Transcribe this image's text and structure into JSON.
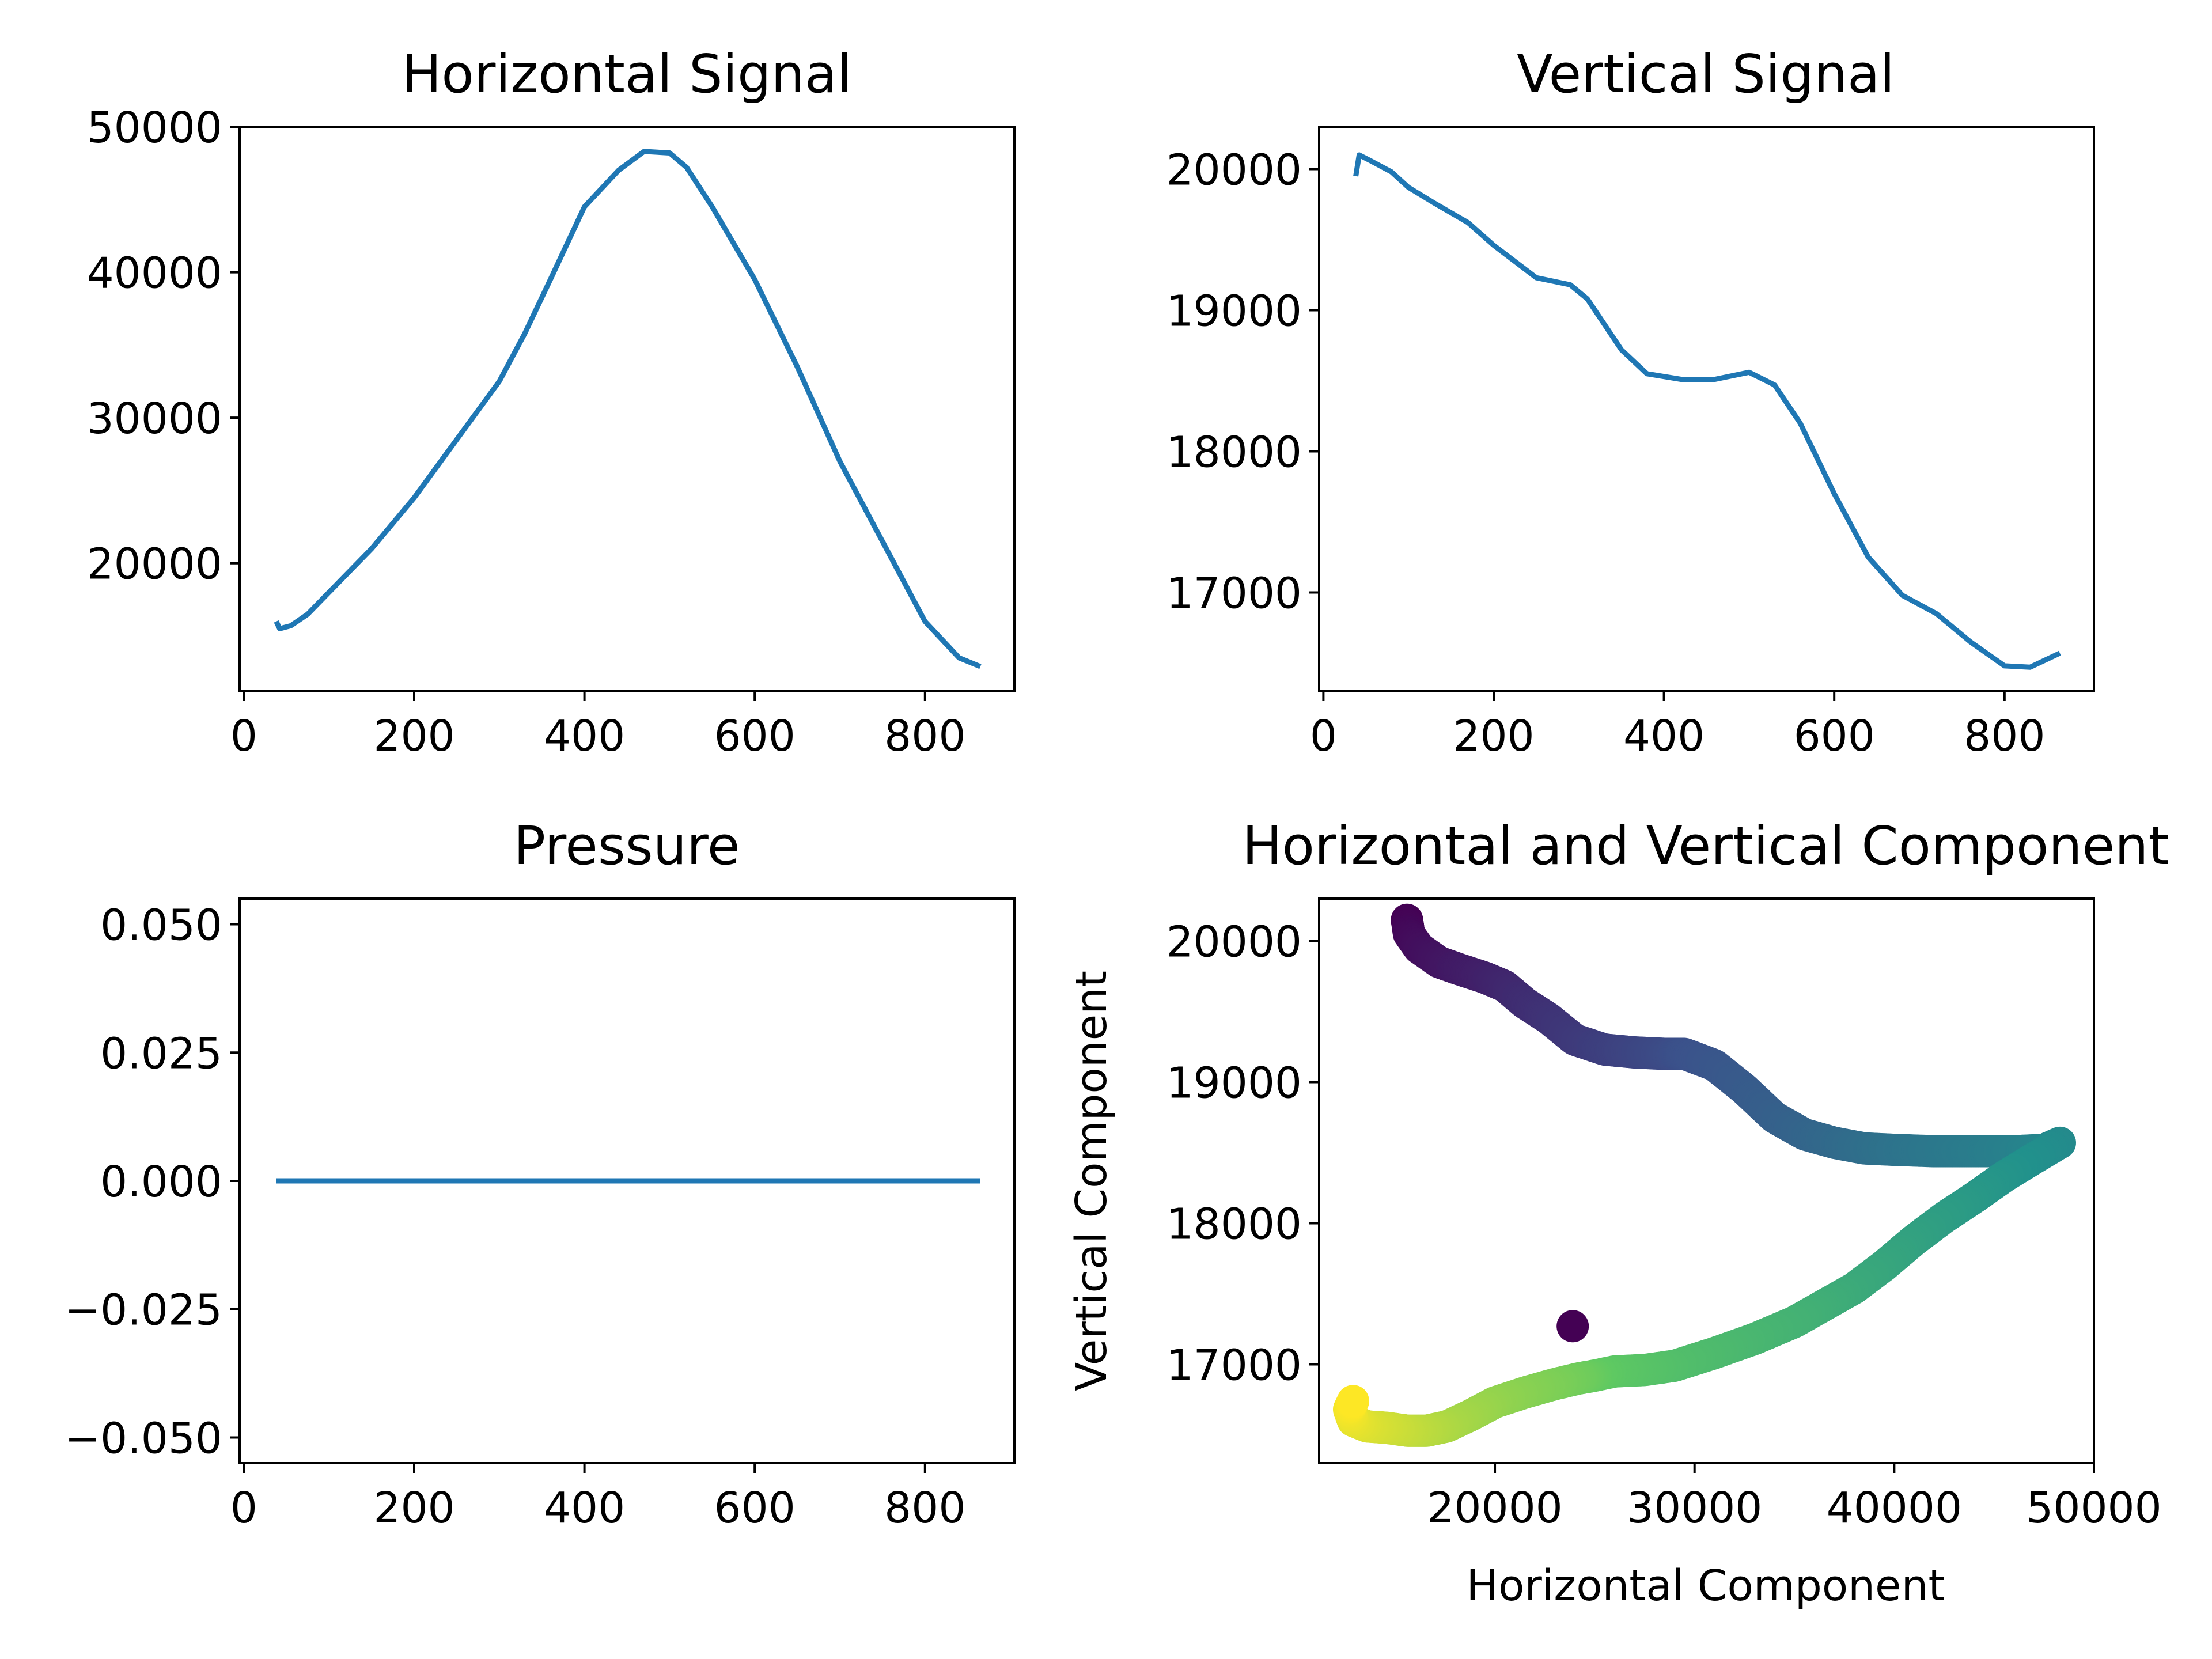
{
  "colors": {
    "line": "#1f77b4",
    "axes": "#000000",
    "background": "#ffffff",
    "colormap": [
      "#440154",
      "#3b528b",
      "#21918c",
      "#5ec962",
      "#fde725"
    ]
  },
  "chart_data": [
    {
      "id": "horizontal",
      "type": "line",
      "title": "Horizontal Signal",
      "xlabel": "",
      "ylabel": "",
      "xlim": [
        -5,
        905
      ],
      "ylim": [
        11200,
        50000
      ],
      "xticks": [
        0,
        200,
        400,
        600,
        800
      ],
      "xtick_labels": [
        "0",
        "200",
        "400",
        "600",
        "800"
      ],
      "yticks": [
        20000,
        30000,
        40000,
        50000
      ],
      "ytick_labels": [
        "20000",
        "30000",
        "40000",
        "50000"
      ],
      "grid": false,
      "series": [
        {
          "x": [
            38,
            42,
            55,
            75,
            100,
            150,
            200,
            250,
            300,
            330,
            360,
            400,
            440,
            470,
            500,
            520,
            550,
            600,
            650,
            700,
            750,
            800,
            840,
            865
          ],
          "y": [
            16000,
            15500,
            15700,
            16500,
            18000,
            21000,
            24500,
            28500,
            32500,
            35800,
            39500,
            44500,
            47000,
            48300,
            48200,
            47200,
            44500,
            39500,
            33500,
            27000,
            21500,
            16000,
            13500,
            12900
          ]
        }
      ]
    },
    {
      "id": "vertical",
      "type": "line",
      "title": "Vertical Signal",
      "xlabel": "",
      "ylabel": "",
      "xlim": [
        -5,
        905
      ],
      "ylim": [
        16300,
        20300
      ],
      "xticks": [
        0,
        200,
        400,
        600,
        800
      ],
      "xtick_labels": [
        "0",
        "200",
        "400",
        "600",
        "800"
      ],
      "yticks": [
        17000,
        18000,
        19000,
        20000
      ],
      "ytick_labels": [
        "17000",
        "18000",
        "19000",
        "20000"
      ],
      "grid": false,
      "series": [
        {
          "x": [
            38,
            42,
            55,
            80,
            100,
            130,
            170,
            200,
            250,
            290,
            310,
            350,
            380,
            420,
            460,
            500,
            530,
            560,
            600,
            640,
            680,
            720,
            760,
            800,
            830,
            865
          ],
          "y": [
            19950,
            20100,
            20060,
            19980,
            19870,
            19760,
            19620,
            19460,
            19230,
            19180,
            19080,
            18720,
            18550,
            18510,
            18510,
            18560,
            18470,
            18200,
            17700,
            17250,
            16980,
            16850,
            16650,
            16480,
            16470,
            16570
          ]
        }
      ]
    },
    {
      "id": "pressure",
      "type": "line",
      "title": "Pressure",
      "xlabel": "",
      "ylabel": "",
      "xlim": [
        -5,
        905
      ],
      "ylim": [
        -0.055,
        0.055
      ],
      "xticks": [
        0,
        200,
        400,
        600,
        800
      ],
      "xtick_labels": [
        "0",
        "200",
        "400",
        "600",
        "800"
      ],
      "yticks": [
        -0.05,
        -0.025,
        0,
        0.025,
        0.05
      ],
      "ytick_labels": [
        "−0.050",
        "−0.025",
        "0.000",
        "0.025",
        "0.050"
      ],
      "grid": false,
      "series": [
        {
          "x": [
            38,
            865
          ],
          "y": [
            0,
            0
          ]
        }
      ]
    },
    {
      "id": "components",
      "type": "scatter",
      "title": "Horizontal and Vertical Component",
      "xlabel": "Horizontal Component",
      "ylabel": "Vertical Component",
      "xlim": [
        11200,
        50000
      ],
      "ylim": [
        16300,
        20300
      ],
      "xticks": [
        20000,
        30000,
        40000,
        50000
      ],
      "xtick_labels": [
        "20000",
        "30000",
        "40000",
        "50000"
      ],
      "yticks": [
        17000,
        18000,
        19000,
        20000
      ],
      "ytick_labels": [
        "17000",
        "18000",
        "19000",
        "20000"
      ],
      "grid": false,
      "colormap": "viridis",
      "path": {
        "x": [
          15600,
          15700,
          16200,
          17200,
          18200,
          19500,
          20500,
          21500,
          22700,
          24000,
          25500,
          27000,
          28500,
          29500,
          31000,
          32500,
          34000,
          35500,
          37000,
          38500,
          40000,
          42000,
          44000,
          46000,
          47500,
          48300,
          47000,
          45500,
          44000,
          42500,
          41000,
          39500,
          38000,
          36500,
          35000,
          33000,
          31000,
          29000,
          27500,
          26000,
          25000,
          24200,
          23000,
          21500,
          20000,
          18800,
          17600,
          16600,
          15600,
          14600,
          13600,
          12900,
          12700,
          12900
        ],
        "y": [
          20150,
          20050,
          19950,
          19850,
          19800,
          19740,
          19680,
          19560,
          19450,
          19300,
          19230,
          19210,
          19200,
          19200,
          19120,
          18950,
          18750,
          18630,
          18570,
          18530,
          18520,
          18510,
          18510,
          18510,
          18520,
          18570,
          18460,
          18330,
          18180,
          18040,
          17880,
          17700,
          17540,
          17420,
          17300,
          17180,
          17080,
          16990,
          16960,
          16950,
          16920,
          16900,
          16860,
          16800,
          16730,
          16640,
          16560,
          16530,
          16530,
          16550,
          16560,
          16600,
          16680,
          16740
        ]
      },
      "outliers": [
        {
          "x": 23900,
          "y": 17270,
          "color_value": 0
        }
      ]
    }
  ]
}
